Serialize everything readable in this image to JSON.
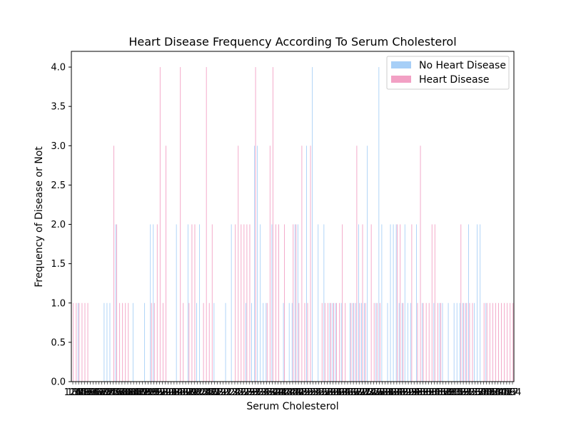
{
  "chart_data": {
    "type": "bar",
    "title": "Heart Disease Frequency According To Serum Cholesterol",
    "xlabel": "Serum Cholesterol",
    "ylabel": "Frequency of Disease or Not",
    "ylim": [
      0,
      4.2
    ],
    "yticks": [
      "0.0",
      "0.5",
      "1.0",
      "1.5",
      "2.0",
      "2.5",
      "3.0",
      "3.5",
      "4.0"
    ],
    "legend_position": "top-right",
    "categories": [
      "126",
      "131",
      "141",
      "149",
      "157",
      "160",
      "164",
      "166",
      "167",
      "168",
      "169",
      "172",
      "174",
      "175",
      "176",
      "177",
      "178",
      "180",
      "182",
      "183",
      "184",
      "185",
      "186",
      "187",
      "188",
      "192",
      "193",
      "195",
      "196",
      "197",
      "198",
      "199",
      "200",
      "201",
      "203",
      "204",
      "205",
      "206",
      "207",
      "208",
      "209",
      "210",
      "211",
      "212",
      "213",
      "214",
      "215",
      "216",
      "217",
      "218",
      "219",
      "220",
      "221",
      "222",
      "223",
      "224",
      "225",
      "226",
      "227",
      "228",
      "229",
      "230",
      "231",
      "232",
      "233",
      "234",
      "235",
      "236",
      "237",
      "239",
      "240",
      "241",
      "242",
      "243",
      "244",
      "245",
      "246",
      "247",
      "248",
      "249",
      "250",
      "252",
      "253",
      "254",
      "255",
      "256",
      "257",
      "258",
      "259",
      "260",
      "261",
      "262",
      "263",
      "264",
      "265",
      "266",
      "267",
      "268",
      "269",
      "270",
      "271",
      "273",
      "274",
      "275",
      "276",
      "277",
      "278",
      "280",
      "281",
      "282",
      "283",
      "284",
      "286",
      "288",
      "289",
      "290",
      "293",
      "294",
      "295",
      "298",
      "299",
      "300",
      "302",
      "303",
      "304",
      "305",
      "306",
      "307",
      "308",
      "309",
      "311",
      "313",
      "315",
      "318",
      "319",
      "321",
      "322",
      "325",
      "326",
      "327",
      "330",
      "335",
      "340",
      "341",
      "342",
      "353",
      "354",
      "360",
      "394",
      "407",
      "409",
      "417",
      "564"
    ],
    "series": [
      {
        "name": "No Heart Disease",
        "color": "#a7cff7",
        "values": [
          0,
          0,
          1,
          0,
          0,
          0,
          0,
          0,
          0,
          0,
          0,
          1,
          1,
          1,
          0,
          2,
          0,
          0,
          0,
          0,
          0,
          1,
          0,
          0,
          0,
          1,
          0,
          2,
          2,
          0,
          0,
          0,
          0,
          0,
          0,
          0,
          2,
          0,
          0,
          0,
          2,
          0,
          0,
          1,
          2,
          0,
          0,
          0,
          0,
          1,
          0,
          0,
          0,
          1,
          0,
          2,
          0,
          0,
          0,
          0,
          1,
          0,
          1,
          3,
          3,
          2,
          1,
          1,
          0,
          2,
          0,
          0,
          0,
          1,
          0,
          1,
          1,
          2,
          2,
          0,
          0,
          3,
          0,
          4,
          0,
          2,
          0,
          2,
          0,
          1,
          1,
          1,
          0,
          1,
          0,
          0,
          1,
          1,
          1,
          2,
          1,
          1,
          3,
          0,
          0,
          1,
          4,
          2,
          0,
          1,
          2,
          2,
          2,
          1,
          1,
          2,
          1,
          1,
          0,
          2,
          0,
          1,
          0,
          0,
          0,
          1,
          0,
          1,
          1,
          0,
          1,
          0,
          1,
          1,
          1,
          1,
          1,
          2,
          0,
          1,
          2,
          2,
          0,
          1,
          0,
          0,
          0,
          0,
          0,
          0,
          0,
          0,
          0
        ]
      },
      {
        "name": "Heart Disease",
        "color": "#f2a0c4",
        "values": [
          1,
          1,
          1,
          1,
          1,
          1,
          0,
          0,
          0,
          0,
          0,
          0,
          0,
          0,
          3,
          2,
          1,
          1,
          1,
          1,
          0,
          0,
          0,
          0,
          0,
          0,
          0,
          1,
          1,
          2,
          4,
          1,
          3,
          0,
          0,
          0,
          0,
          4,
          1,
          0,
          1,
          2,
          2,
          0,
          0,
          1,
          4,
          1,
          2,
          0,
          0,
          0,
          0,
          0,
          0,
          0,
          2,
          3,
          2,
          2,
          2,
          2,
          0,
          4,
          0,
          0,
          0,
          1,
          3,
          4,
          2,
          2,
          0,
          2,
          0,
          0,
          2,
          2,
          1,
          3,
          1,
          1,
          3,
          0,
          0,
          0,
          1,
          1,
          1,
          1,
          1,
          1,
          1,
          2,
          1,
          0,
          1,
          1,
          3,
          1,
          2,
          1,
          0,
          2,
          1,
          1,
          1,
          0,
          0,
          0,
          0,
          0,
          2,
          2,
          1,
          0,
          0,
          2,
          0,
          1,
          3,
          1,
          1,
          1,
          2,
          2,
          1,
          1,
          0,
          0,
          0,
          0,
          0,
          0,
          2,
          1,
          1,
          1,
          1,
          0,
          0,
          0,
          1,
          1,
          1,
          1,
          1,
          1,
          1,
          1,
          1,
          1,
          1
        ]
      }
    ]
  }
}
